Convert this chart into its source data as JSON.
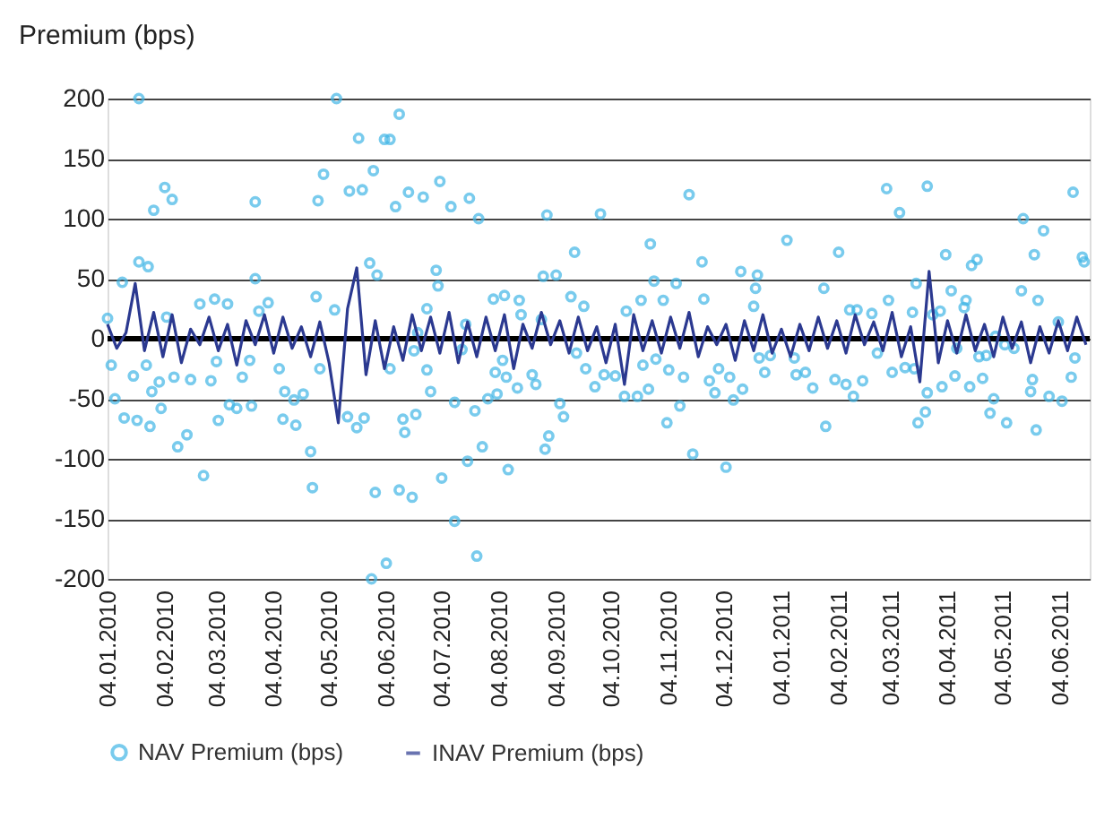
{
  "chart_data": {
    "type": "scatter",
    "ylabel": "Premium (bps)",
    "xlim": [
      "2010-01-04",
      "2011-06-20"
    ],
    "xticks": [
      {
        "value": "2010-01-04",
        "label": "04.01.2010"
      },
      {
        "value": "2010-02-04",
        "label": "04.02.2010"
      },
      {
        "value": "2010-03-04",
        "label": "04.03.2010"
      },
      {
        "value": "2010-04-04",
        "label": "04.04.2010"
      },
      {
        "value": "2010-05-04",
        "label": "04.05.2010"
      },
      {
        "value": "2010-06-04",
        "label": "04.06.2010"
      },
      {
        "value": "2010-07-04",
        "label": "04.07.2010"
      },
      {
        "value": "2010-08-04",
        "label": "04.08.2010"
      },
      {
        "value": "2010-09-04",
        "label": "04.09.2010"
      },
      {
        "value": "2010-10-04",
        "label": "04.10.2010"
      },
      {
        "value": "2010-11-04",
        "label": "04.11.2010"
      },
      {
        "value": "2010-12-04",
        "label": "04.12.2010"
      },
      {
        "value": "2011-01-04",
        "label": "04.01.2011"
      },
      {
        "value": "2011-02-04",
        "label": "04.02.2011"
      },
      {
        "value": "2011-03-04",
        "label": "04.03.2011"
      },
      {
        "value": "2011-04-04",
        "label": "04.04.2011"
      },
      {
        "value": "2011-05-04",
        "label": "04.05.2011"
      },
      {
        "value": "2011-06-04",
        "label": "04.06.2011"
      }
    ],
    "ylim": [
      -200,
      200
    ],
    "yticks": [
      -200,
      -150,
      -100,
      -50,
      0,
      50,
      100,
      150,
      200
    ],
    "grid": "y",
    "legend": "bottom",
    "ref_lines": [
      {
        "axis": "y",
        "value": 0,
        "color": "#000000"
      }
    ],
    "series": [
      {
        "name": "NAV Premium (bps)",
        "marker": "circle",
        "color": "#41b6e6",
        "x": [
          "2010-01-04",
          "2010-01-06",
          "2010-01-08",
          "2010-01-12",
          "2010-01-13",
          "2010-01-18",
          "2010-01-20",
          "2010-01-21",
          "2010-01-21",
          "2010-01-25",
          "2010-01-26",
          "2010-01-27",
          "2010-01-28",
          "2010-01-29",
          "2010-02-01",
          "2010-02-02",
          "2010-02-04",
          "2010-02-05",
          "2010-02-08",
          "2010-02-09",
          "2010-02-11",
          "2010-02-16",
          "2010-02-18",
          "2010-02-23",
          "2010-02-25",
          "2010-03-01",
          "2010-03-03",
          "2010-03-04",
          "2010-03-05",
          "2010-03-10",
          "2010-03-11",
          "2010-03-15",
          "2010-03-18",
          "2010-03-22",
          "2010-03-23",
          "2010-03-25",
          "2010-03-25",
          "2010-03-27",
          "2010-04-01",
          "2010-04-07",
          "2010-04-09",
          "2010-04-10",
          "2010-04-15",
          "2010-04-16",
          "2010-04-20",
          "2010-04-24",
          "2010-04-25",
          "2010-04-27",
          "2010-04-28",
          "2010-04-29",
          "2010-05-01",
          "2010-05-07",
          "2010-05-08",
          "2010-05-14",
          "2010-05-15",
          "2010-05-19",
          "2010-05-20",
          "2010-05-22",
          "2010-05-23",
          "2010-05-26",
          "2010-05-27",
          "2010-05-28",
          "2010-05-29",
          "2010-05-30",
          "2010-06-03",
          "2010-06-04",
          "2010-06-06",
          "2010-06-06",
          "2010-06-09",
          "2010-06-11",
          "2010-06-11",
          "2010-06-13",
          "2010-06-14",
          "2010-06-16",
          "2010-06-18",
          "2010-06-19",
          "2010-06-20",
          "2010-06-21",
          "2010-06-24",
          "2010-06-26",
          "2010-06-26",
          "2010-06-28",
          "2010-07-01",
          "2010-07-02",
          "2010-07-03",
          "2010-07-04",
          "2010-07-09",
          "2010-07-11",
          "2010-07-11",
          "2010-07-15",
          "2010-07-17",
          "2010-07-18",
          "2010-07-19",
          "2010-07-22",
          "2010-07-23",
          "2010-07-24",
          "2010-07-26",
          "2010-07-29",
          "2010-08-01",
          "2010-08-02",
          "2010-08-03",
          "2010-08-06",
          "2010-08-07",
          "2010-08-08",
          "2010-08-09",
          "2010-08-14",
          "2010-08-15",
          "2010-08-16",
          "2010-08-22",
          "2010-08-24",
          "2010-08-27",
          "2010-08-28",
          "2010-08-29",
          "2010-08-30",
          "2010-08-31",
          "2010-09-04",
          "2010-09-06",
          "2010-09-08",
          "2010-09-12",
          "2010-09-14",
          "2010-09-15",
          "2010-09-19",
          "2010-09-20",
          "2010-09-25",
          "2010-09-28",
          "2010-09-30",
          "2010-10-06",
          "2010-10-11",
          "2010-10-12",
          "2010-10-18",
          "2010-10-20",
          "2010-10-21",
          "2010-10-24",
          "2010-10-25",
          "2010-10-27",
          "2010-10-28",
          "2010-11-01",
          "2010-11-03",
          "2010-11-04",
          "2010-11-08",
          "2010-11-10",
          "2010-11-12",
          "2010-11-15",
          "2010-11-17",
          "2010-11-22",
          "2010-11-23",
          "2010-11-26",
          "2010-11-29",
          "2010-12-01",
          "2010-12-05",
          "2010-12-07",
          "2010-12-09",
          "2010-12-13",
          "2010-12-14",
          "2010-12-20",
          "2010-12-21",
          "2010-12-22",
          "2010-12-23",
          "2010-12-26",
          "2010-12-29",
          "2011-01-07",
          "2011-01-11",
          "2011-01-12",
          "2011-01-17",
          "2011-01-21",
          "2011-01-27",
          "2011-01-28",
          "2011-02-02",
          "2011-02-04",
          "2011-02-08",
          "2011-02-10",
          "2011-02-12",
          "2011-02-14",
          "2011-02-17",
          "2011-02-22",
          "2011-02-25",
          "2011-03-02",
          "2011-03-03",
          "2011-03-05",
          "2011-03-09",
          "2011-03-12",
          "2011-03-16",
          "2011-03-17",
          "2011-03-18",
          "2011-03-19",
          "2011-03-23",
          "2011-03-24",
          "2011-03-24",
          "2011-03-27",
          "2011-03-31",
          "2011-04-01",
          "2011-04-03",
          "2011-04-06",
          "2011-04-08",
          "2011-04-09",
          "2011-04-13",
          "2011-04-14",
          "2011-04-16",
          "2011-04-17",
          "2011-04-20",
          "2011-04-21",
          "2011-04-23",
          "2011-04-25",
          "2011-04-27",
          "2011-04-29",
          "2011-04-30",
          "2011-05-05",
          "2011-05-06",
          "2011-05-10",
          "2011-05-14",
          "2011-05-15",
          "2011-05-19",
          "2011-05-20",
          "2011-05-21",
          "2011-05-22",
          "2011-05-23",
          "2011-05-26",
          "2011-05-29",
          "2011-06-03",
          "2011-06-05",
          "2011-06-10",
          "2011-06-11",
          "2011-06-12",
          "2011-06-16",
          "2011-06-17"
        ],
        "values": [
          17,
          -22,
          -50,
          47,
          -66,
          -31,
          -68,
          200,
          64,
          -22,
          60,
          -73,
          -44,
          107,
          -36,
          -58,
          126,
          18,
          116,
          -32,
          -90,
          -80,
          -34,
          29,
          -114,
          -35,
          33,
          -19,
          -68,
          29,
          -55,
          -58,
          -32,
          -18,
          -56,
          114,
          50,
          23,
          30,
          -25,
          -67,
          -44,
          -51,
          -72,
          -46,
          -94,
          -124,
          35,
          115,
          -25,
          137,
          24,
          200,
          -65,
          123,
          -74,
          167,
          124,
          -66,
          63,
          -200,
          140,
          -128,
          53,
          166,
          -187,
          166,
          -25,
          110,
          187,
          -126,
          -67,
          -78,
          122,
          -132,
          -10,
          -63,
          5,
          118,
          25,
          -26,
          -44,
          57,
          44,
          131,
          -116,
          110,
          -53,
          -152,
          -9,
          12,
          -102,
          117,
          -60,
          -181,
          100,
          -90,
          -50,
          33,
          -28,
          -46,
          -18,
          36,
          -32,
          -109,
          -41,
          32,
          20,
          -30,
          -38,
          16,
          52,
          -92,
          103,
          -81,
          53,
          -54,
          -65,
          35,
          72,
          -12,
          27,
          -25,
          -40,
          104,
          -30,
          -31,
          -48,
          23,
          -48,
          32,
          -22,
          -42,
          79,
          48,
          -17,
          32,
          -70,
          -26,
          46,
          -56,
          -32,
          120,
          -96,
          64,
          33,
          -35,
          -45,
          -25,
          -107,
          -32,
          -51,
          56,
          -42,
          27,
          42,
          53,
          -16,
          -28,
          -14,
          82,
          -16,
          -30,
          -28,
          -41,
          42,
          -73,
          -34,
          72,
          -38,
          24,
          -48,
          24,
          -35,
          21,
          -12,
          125,
          32,
          -28,
          105,
          -24,
          22,
          -25,
          46,
          -70,
          -61,
          -45,
          127,
          20,
          23,
          -40,
          70,
          40,
          -31,
          -8,
          26,
          32,
          -40,
          61,
          66,
          -15,
          -33,
          -14,
          -62,
          -50,
          2,
          -5,
          -70,
          -8,
          40,
          100,
          -44,
          -34,
          70,
          -76,
          32,
          90,
          -48,
          14,
          -52,
          -32,
          122,
          -16,
          68,
          64
        ]
      },
      {
        "name": "INAV Premium (bps)",
        "type": "line",
        "color": "#2b3990",
        "x": [
          "2010-01-04",
          "2010-01-09",
          "2010-01-14",
          "2010-01-19",
          "2010-01-24",
          "2010-01-29",
          "2010-02-03",
          "2010-02-08",
          "2010-02-13",
          "2010-02-18",
          "2010-02-23",
          "2010-02-28",
          "2010-03-05",
          "2010-03-10",
          "2010-03-15",
          "2010-03-20",
          "2010-03-25",
          "2010-03-30",
          "2010-04-04",
          "2010-04-09",
          "2010-04-14",
          "2010-04-19",
          "2010-04-24",
          "2010-04-29",
          "2010-05-04",
          "2010-05-09",
          "2010-05-14",
          "2010-05-19",
          "2010-05-24",
          "2010-05-29",
          "2010-06-03",
          "2010-06-08",
          "2010-06-13",
          "2010-06-18",
          "2010-06-23",
          "2010-06-28",
          "2010-07-03",
          "2010-07-08",
          "2010-07-13",
          "2010-07-18",
          "2010-07-23",
          "2010-07-28",
          "2010-08-02",
          "2010-08-07",
          "2010-08-12",
          "2010-08-17",
          "2010-08-22",
          "2010-08-27",
          "2010-09-01",
          "2010-09-06",
          "2010-09-11",
          "2010-09-16",
          "2010-09-21",
          "2010-09-26",
          "2010-10-01",
          "2010-10-06",
          "2010-10-11",
          "2010-10-16",
          "2010-10-21",
          "2010-10-26",
          "2010-10-31",
          "2010-11-05",
          "2010-11-10",
          "2010-11-15",
          "2010-11-20",
          "2010-11-25",
          "2010-11-30",
          "2010-12-05",
          "2010-12-10",
          "2010-12-15",
          "2010-12-20",
          "2010-12-25",
          "2010-12-30",
          "2011-01-04",
          "2011-01-09",
          "2011-01-14",
          "2011-01-19",
          "2011-01-24",
          "2011-01-29",
          "2011-02-03",
          "2011-02-08",
          "2011-02-13",
          "2011-02-18",
          "2011-02-23",
          "2011-02-28",
          "2011-03-05",
          "2011-03-10",
          "2011-03-15",
          "2011-03-20",
          "2011-03-25",
          "2011-03-30",
          "2011-04-04",
          "2011-04-09",
          "2011-04-14",
          "2011-04-19",
          "2011-04-24",
          "2011-04-29",
          "2011-05-04",
          "2011-05-09",
          "2011-05-14",
          "2011-05-19",
          "2011-05-24",
          "2011-05-29",
          "2011-06-03",
          "2011-06-08",
          "2011-06-13",
          "2011-06-18"
        ],
        "values": [
          12,
          -8,
          5,
          46,
          -10,
          22,
          -15,
          20,
          -20,
          8,
          -5,
          18,
          -10,
          12,
          -22,
          15,
          -5,
          20,
          -12,
          18,
          -8,
          10,
          -15,
          14,
          -20,
          -70,
          25,
          59,
          -30,
          15,
          -25,
          10,
          -18,
          20,
          -10,
          18,
          -12,
          22,
          -20,
          14,
          -15,
          18,
          -10,
          20,
          -25,
          12,
          -8,
          22,
          -5,
          15,
          -12,
          18,
          -10,
          10,
          -20,
          12,
          -38,
          20,
          -10,
          15,
          -12,
          18,
          -8,
          22,
          -15,
          10,
          -5,
          12,
          -18,
          15,
          -10,
          20,
          -12,
          8,
          -15,
          12,
          -10,
          18,
          -8,
          15,
          -12,
          20,
          -5,
          14,
          -10,
          22,
          -15,
          10,
          -36,
          56,
          -20,
          15,
          -12,
          20,
          -10,
          12,
          -15,
          18,
          -8,
          14,
          -20,
          10,
          -12,
          15,
          -10,
          18,
          -5
        ]
      }
    ]
  }
}
